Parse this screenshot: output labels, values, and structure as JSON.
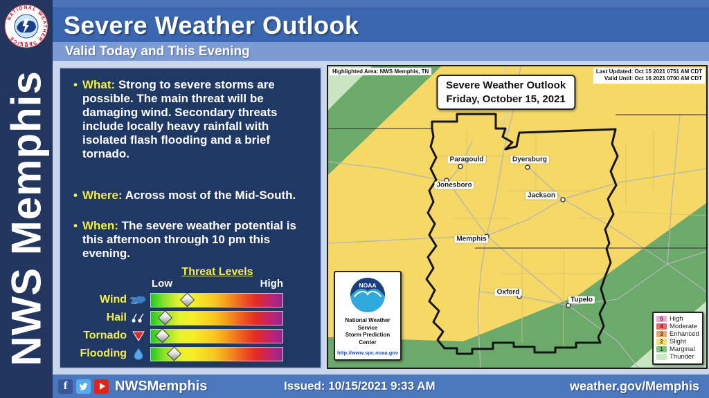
{
  "header": {
    "title": "Severe Weather Outlook",
    "subtitle": "Valid Today and This Evening"
  },
  "sidebar": {
    "vertical_text": "NWS Memphis",
    "logo_ring_text": "NATIONAL WEATHER SERVICE",
    "logo_stars": "★ ★ ★"
  },
  "panel": {
    "bullets": [
      {
        "label": "What:",
        "text": "Strong to severe storms are possible. The main threat will be damaging wind. Secondary threats include locally heavy rainfall with isolated flash flooding and a brief tornado."
      },
      {
        "label": "Where:",
        "text": "Across most of the Mid-South."
      },
      {
        "label": "When:",
        "text": "The severe weather potential is this afternoon through 10 pm this evening."
      }
    ]
  },
  "threat_levels": {
    "title": "Threat Levels",
    "low": "Low",
    "high": "High",
    "rows": [
      {
        "name": "Wind",
        "icon": "wind-gust-icon",
        "level_pct": 28
      },
      {
        "name": "Hail",
        "icon": "hail-icon",
        "level_pct": 11
      },
      {
        "name": "Tornado",
        "icon": "tornado-icon",
        "level_pct": 9
      },
      {
        "name": "Flooding",
        "icon": "flood-drop-icon",
        "level_pct": 18
      }
    ]
  },
  "map": {
    "highlighted_area": "Highlighted Area: NWS Memphis, TN",
    "last_updated": "Last Updated: Oct 15 2021 0751 AM CDT",
    "valid_until": "Valid Until: Oct 16 2021 0700 AM CDT",
    "title_line1": "Severe Weather Outlook",
    "title_line2": "Friday, October 15, 2021",
    "cities": [
      "Paragould",
      "Jonesboro",
      "Dyersburg",
      "Jackson",
      "Memphis",
      "Oxford",
      "Tupelo"
    ],
    "legend": [
      {
        "num": "5",
        "label": "High",
        "color": "#EFA8D8"
      },
      {
        "num": "4",
        "label": "Moderate",
        "color": "#E9686B"
      },
      {
        "num": "3",
        "label": "Enhanced",
        "color": "#F0A86A"
      },
      {
        "num": "2",
        "label": "Slight",
        "color": "#F6E06C"
      },
      {
        "num": "1",
        "label": "Marginal",
        "color": "#7BC57E"
      },
      {
        "num": "",
        "label": "Thunder",
        "color": "#C9E8C4"
      }
    ],
    "credit": {
      "org": "NOAA",
      "line1": "National Weather Service",
      "line2": "Storm Prediction Center",
      "url": "http://www.spc.noaa.gov"
    }
  },
  "footer": {
    "handle": "NWSMemphis",
    "issued": "Issued: 10/15/2021 9:33 AM",
    "site": "weather.gov/Memphis"
  },
  "colors": {
    "risk_slight": "#F5D866",
    "risk_marginal": "#6BAA6B",
    "risk_thunder": "#C6E5C0",
    "panel_navy": "#1F3864",
    "header_blue": "#3A67B0",
    "subheader_blue": "#7C9BD2",
    "content_bg": "#C9D6EC",
    "footer_blue": "#4A77BE",
    "accent_yellow": "#F5F042"
  }
}
